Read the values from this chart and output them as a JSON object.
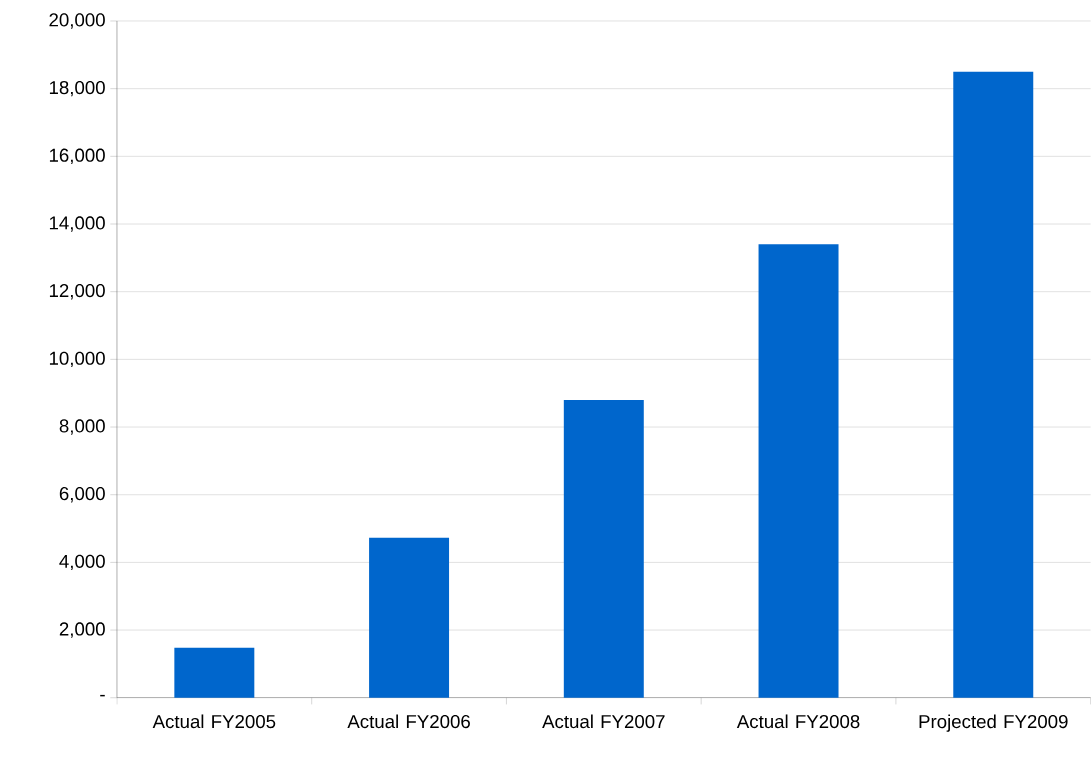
{
  "chart_data": {
    "type": "bar",
    "categories": [
      "Actual FY2005",
      "Actual FY2006",
      "Actual FY2007",
      "Actual FY2008",
      "Projected FY2009"
    ],
    "values": [
      1480,
      4730,
      8800,
      13400,
      18500
    ],
    "color": "#0066cc",
    "ylim": [
      0,
      20000
    ],
    "yticks": [
      {
        "value": 0,
        "label": "-"
      },
      {
        "value": 2000,
        "label": "2,000"
      },
      {
        "value": 4000,
        "label": "4,000"
      },
      {
        "value": 6000,
        "label": "6,000"
      },
      {
        "value": 8000,
        "label": "8,000"
      },
      {
        "value": 10000,
        "label": "10,000"
      },
      {
        "value": 12000,
        "label": "12,000"
      },
      {
        "value": 14000,
        "label": "14,000"
      },
      {
        "value": 16000,
        "label": "16,000"
      },
      {
        "value": 18000,
        "label": "18,000"
      },
      {
        "value": 20000,
        "label": "20,000"
      }
    ],
    "grid": "y"
  }
}
